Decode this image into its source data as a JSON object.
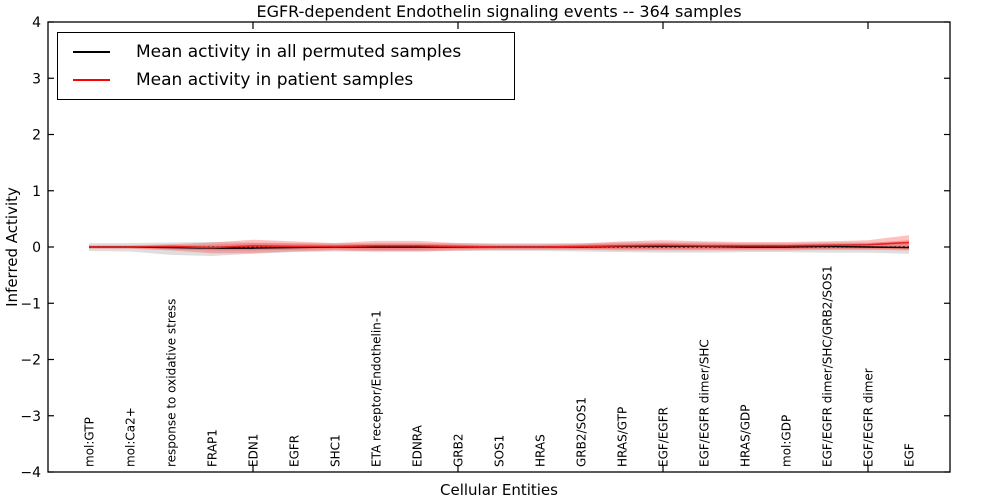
{
  "figure": {
    "title": "EGFR-dependent Endothelin signaling events -- 364 samples",
    "xlabel": "Cellular Entities",
    "ylabel": "Inferred Activity"
  },
  "legend": {
    "position": "upper left",
    "entries": [
      {
        "label": "Mean activity in all permuted samples",
        "color": "#000000"
      },
      {
        "label": "Mean activity in patient samples",
        "color": "#ff0000"
      }
    ]
  },
  "chart_data": {
    "type": "line",
    "title": "EGFR-dependent Endothelin signaling events -- 364 samples",
    "xlabel": "Cellular Entities",
    "ylabel": "Inferred Activity",
    "ylim": [
      -4,
      4
    ],
    "x_range_units": [
      0,
      22
    ],
    "yticks": [
      4,
      3,
      2,
      1,
      0,
      -1,
      -2,
      -3,
      -4
    ],
    "xticks_units": [
      5,
      10,
      15,
      20
    ],
    "grid": false,
    "legend_position": "upper left",
    "categories": [
      "mol:GTP",
      "mol:Ca2+",
      "response to oxidative stress",
      "FRAP1",
      "EDN1",
      "EGFR",
      "SHC1",
      "ETA receptor/Endothelin-1",
      "EDNRA",
      "GRB2",
      "SOS1",
      "HRAS",
      "GRB2/SOS1",
      "HRAS/GTP",
      "EGF/EGFR",
      "EGF/EGFR dimer/SHC",
      "HRAS/GDP",
      "mol:GDP",
      "EGF/EGFR dimer/SHC/GRB2/SOS1",
      "EGF/EGFR dimer",
      "EGF"
    ],
    "series": [
      {
        "name": "Mean activity in all permuted samples",
        "color": "#000000",
        "width": 1.4,
        "values": [
          0,
          0,
          -0.01,
          -0.02,
          -0.02,
          -0.01,
          0,
          0,
          0,
          0,
          0,
          0,
          0,
          0.01,
          0.01,
          0.01,
          0,
          0,
          0.01,
          0,
          -0.01
        ]
      },
      {
        "name": "Mean activity in patient samples",
        "color": "#e62222",
        "width": 1.6,
        "values": [
          0,
          0,
          0.01,
          -0.01,
          0.02,
          0.01,
          0.01,
          0.02,
          0.02,
          0.01,
          0,
          0,
          0.01,
          0.02,
          0.03,
          0.02,
          0.02,
          0.02,
          0.03,
          0.04,
          0.08
        ]
      }
    ],
    "bands": [
      {
        "name": "permuted-null-band",
        "color": "#999999",
        "opacity": 0.32,
        "upper": [
          0.07,
          0.07,
          0.08,
          0.09,
          0.08,
          0.07,
          0.07,
          0.07,
          0.07,
          0.07,
          0.07,
          0.07,
          0.07,
          0.08,
          0.08,
          0.08,
          0.07,
          0.07,
          0.08,
          0.08,
          0.09
        ],
        "lower": [
          -0.07,
          -0.08,
          -0.14,
          -0.16,
          -0.12,
          -0.09,
          -0.08,
          -0.08,
          -0.08,
          -0.07,
          -0.07,
          -0.07,
          -0.08,
          -0.09,
          -0.1,
          -0.1,
          -0.09,
          -0.09,
          -0.1,
          -0.1,
          -0.12
        ]
      },
      {
        "name": "patient-band-outer",
        "color": "#ff3030",
        "opacity": 0.3,
        "upper": [
          0.03,
          0.03,
          0.05,
          0.08,
          0.13,
          0.1,
          0.07,
          0.11,
          0.11,
          0.07,
          0.05,
          0.05,
          0.06,
          0.1,
          0.12,
          0.1,
          0.09,
          0.09,
          0.1,
          0.12,
          0.21
        ],
        "lower": [
          -0.03,
          -0.03,
          -0.06,
          -0.11,
          -0.11,
          -0.08,
          -0.06,
          -0.08,
          -0.08,
          -0.06,
          -0.05,
          -0.05,
          -0.05,
          -0.06,
          -0.06,
          -0.06,
          -0.06,
          -0.06,
          -0.05,
          -0.05,
          -0.06
        ]
      },
      {
        "name": "patient-band-inner",
        "color": "#ff3030",
        "opacity": 0.3,
        "upper": [
          0.02,
          0.02,
          0.03,
          0.04,
          0.07,
          0.06,
          0.04,
          0.06,
          0.06,
          0.04,
          0.03,
          0.03,
          0.04,
          0.06,
          0.07,
          0.06,
          0.05,
          0.05,
          0.06,
          0.07,
          0.12
        ],
        "lower": [
          -0.02,
          -0.02,
          -0.04,
          -0.06,
          -0.06,
          -0.05,
          -0.04,
          -0.05,
          -0.05,
          -0.04,
          -0.03,
          -0.03,
          -0.03,
          -0.04,
          -0.04,
          -0.04,
          -0.04,
          -0.04,
          -0.03,
          -0.03,
          -0.04
        ]
      }
    ],
    "zero_line": {
      "y": 0,
      "style": "dotted",
      "color": "#000000"
    }
  }
}
